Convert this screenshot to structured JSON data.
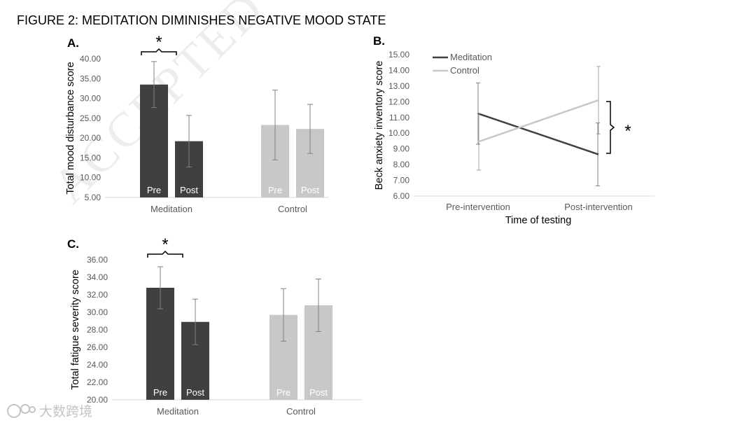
{
  "figure_title": "FIGURE 2:  MEDITATION DIMINISHES NEGATIVE MOOD STATE",
  "watermark": "ACCEPTED MANUSCRIPT",
  "logo_text": "大数跨境",
  "colors": {
    "meditation": "#404040",
    "control": "#c8c8c8",
    "axis": "#d9d9d9",
    "error": "#808080"
  },
  "chart_data": [
    {
      "panel": "A.",
      "type": "bar",
      "ylabel": "Total mood disturbance score",
      "ylim": [
        5,
        40
      ],
      "ytick_step": 5,
      "ytick_decimals": 2,
      "groups": [
        "Meditation",
        "Control"
      ],
      "bar_labels": [
        "Pre",
        "Post"
      ],
      "series": [
        {
          "name": "Meditation",
          "values": [
            33.5,
            19.2
          ],
          "errors": [
            5.8,
            6.5
          ]
        },
        {
          "name": "Control",
          "values": [
            23.3,
            22.3
          ],
          "errors": [
            8.8,
            6.2
          ]
        }
      ],
      "significance": "*"
    },
    {
      "panel": "B.",
      "type": "line",
      "ylabel": "Beck anxiety inventory score",
      "xlabel": "Time of testing",
      "categories": [
        "Pre-intervention",
        "Post-intervention"
      ],
      "ylim": [
        6,
        15
      ],
      "ytick_step": 1,
      "ytick_decimals": 2,
      "legend_position": "top-left",
      "series": [
        {
          "name": "Meditation",
          "values": [
            11.25,
            8.65
          ],
          "errors": [
            1.95,
            2.0
          ]
        },
        {
          "name": "Control",
          "values": [
            9.45,
            12.1
          ],
          "errors": [
            1.8,
            2.15
          ]
        }
      ],
      "significance": "*"
    },
    {
      "panel": "C.",
      "type": "bar",
      "ylabel": "Total fatigue severity score",
      "ylim": [
        20,
        36
      ],
      "ytick_step": 2,
      "ytick_decimals": 2,
      "groups": [
        "Meditation",
        "Control"
      ],
      "bar_labels": [
        "Pre",
        "Post"
      ],
      "series": [
        {
          "name": "Meditation",
          "values": [
            32.8,
            28.9
          ],
          "errors": [
            2.4,
            2.6
          ]
        },
        {
          "name": "Control",
          "values": [
            29.7,
            30.8
          ],
          "errors": [
            3.0,
            3.0
          ]
        }
      ],
      "significance": "*"
    }
  ]
}
